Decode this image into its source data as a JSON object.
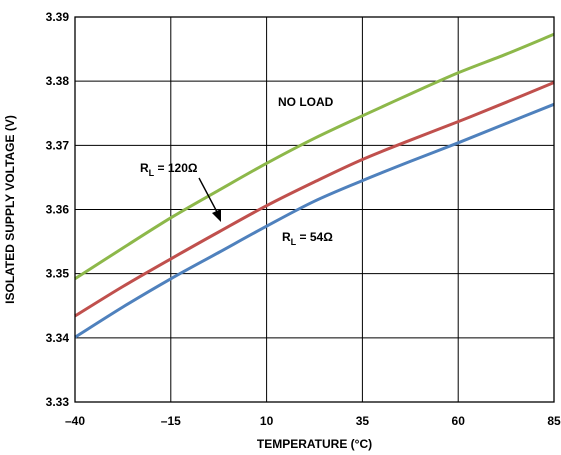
{
  "chart_data": {
    "type": "line",
    "xlabel": "TEMPERATURE (°C)",
    "ylabel": "ISOLATED SUPPLY VOLTAGE (V)",
    "xlim": [
      -40,
      85
    ],
    "ylim": [
      3.33,
      3.39
    ],
    "x_ticks": [
      -40,
      -15,
      10,
      35,
      60,
      85
    ],
    "x_tick_labels": [
      "–40",
      "–15",
      "10",
      "35",
      "60",
      "85"
    ],
    "y_ticks": [
      3.33,
      3.34,
      3.35,
      3.36,
      3.37,
      3.38,
      3.39
    ],
    "y_tick_labels": [
      "3.33",
      "3.34",
      "3.35",
      "3.36",
      "3.37",
      "3.38",
      "3.39"
    ],
    "grid": true,
    "x": [
      -40,
      -27.5,
      -15,
      -2.5,
      10,
      22.5,
      35,
      47.5,
      60,
      72.5,
      85
    ],
    "series": [
      {
        "name": "NO LOAD",
        "color": "#8db84a",
        "values": [
          3.3492,
          3.354,
          3.3587,
          3.363,
          3.3672,
          3.3711,
          3.3746,
          3.378,
          3.3813,
          3.3842,
          3.3873
        ]
      },
      {
        "name": "R_L = 120Ω",
        "color": "#c0504d",
        "values": [
          3.3434,
          3.348,
          3.3523,
          3.3565,
          3.3606,
          3.3643,
          3.3678,
          3.3708,
          3.3737,
          3.3767,
          3.3798
        ]
      },
      {
        "name": "R_L = 54Ω",
        "color": "#4f81bd",
        "values": [
          3.3401,
          3.3448,
          3.3492,
          3.3533,
          3.3574,
          3.3613,
          3.3645,
          3.3675,
          3.3704,
          3.3734,
          3.3764
        ]
      }
    ],
    "annotations": [
      {
        "label_main": "NO LOAD",
        "label_sub": "",
        "label_tail": ""
      },
      {
        "label_main": "R",
        "label_sub": "L",
        "label_tail": " = 120Ω"
      },
      {
        "label_main": "R",
        "label_sub": "L",
        "label_tail": " = 54Ω"
      }
    ]
  }
}
